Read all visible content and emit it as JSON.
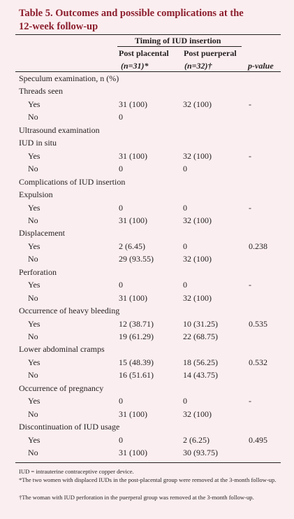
{
  "title": "Table 5. Outcomes and possible complications at the 12-week follow-up",
  "header": {
    "group": "Timing of IUD insertion",
    "columns": [
      "Post placental",
      "Post puerperal",
      "p-value"
    ],
    "counts": [
      "(n=31)*",
      "(n=32)†"
    ]
  },
  "rows": [
    {
      "label": "Speculum examination, n (%)"
    },
    {
      "label": "Threads seen"
    },
    {
      "label": "Yes",
      "post_placental": "31 (100)",
      "post_puerperal": "32 (100)",
      "p_value": "-"
    },
    {
      "label": "No",
      "post_placental": "0"
    },
    {
      "label": "Ultrasound examination"
    },
    {
      "label": "IUD in situ"
    },
    {
      "label": "Yes",
      "post_placental": "31 (100)",
      "post_puerperal": "32 (100)",
      "p_value": "-"
    },
    {
      "label": "No",
      "post_placental": "0",
      "post_puerperal": "0"
    },
    {
      "label": "Complications of IUD insertion"
    },
    {
      "label": "Expulsion"
    },
    {
      "label": "Yes",
      "post_placental": "0",
      "post_puerperal": "0",
      "p_value": "-"
    },
    {
      "label": "No",
      "post_placental": "31 (100)",
      "post_puerperal": "32 (100)"
    },
    {
      "label": "Displacement"
    },
    {
      "label": "Yes",
      "post_placental": "2 (6.45)",
      "post_puerperal": "0",
      "p_value": "0.238"
    },
    {
      "label": "No",
      "post_placental": "29 (93.55)",
      "post_puerperal": "32 (100)"
    },
    {
      "label": "Perforation"
    },
    {
      "label": "Yes",
      "post_placental": "0",
      "post_puerperal": "0",
      "p_value": "-"
    },
    {
      "label": "No",
      "post_placental": "31 (100)",
      "post_puerperal": "32 (100)"
    },
    {
      "label": "Occurrence of heavy bleeding"
    },
    {
      "label": "Yes",
      "post_placental": "12 (38.71)",
      "post_puerperal": "10 (31.25)",
      "p_value": "0.535"
    },
    {
      "label": "No",
      "post_placental": "19 (61.29)",
      "post_puerperal": "22 (68.75)"
    },
    {
      "label": "Lower abdominal cramps"
    },
    {
      "label": "Yes",
      "post_placental": "15 (48.39)",
      "post_puerperal": "18 (56.25)",
      "p_value": "0.532"
    },
    {
      "label": "No",
      "post_placental": "16 (51.61)",
      "post_puerperal": "14 (43.75)"
    },
    {
      "label": "Occurrence of pregnancy"
    },
    {
      "label": "Yes",
      "post_placental": "0",
      "post_puerperal": "0",
      "p_value": "-"
    },
    {
      "label": "No",
      "post_placental": "31 (100)",
      "post_puerperal": "32 (100)"
    },
    {
      "label": "Discontinuation of IUD usage"
    },
    {
      "label": "Yes",
      "post_placental": "0",
      "post_puerperal": "2 (6.25)",
      "p_value": "0.495"
    },
    {
      "label": "No",
      "post_placental": "31 (100)",
      "post_puerperal": "30 (93.75)"
    }
  ],
  "footnotes": [
    "IUD = intrauterine contraceptive copper device.",
    "*The two women with displaced IUDs in the post-placental group were removed at the 3-month follow-up.",
    "†The woman with IUD perforation in the puerperal group was removed at the 3-month follow-up."
  ]
}
